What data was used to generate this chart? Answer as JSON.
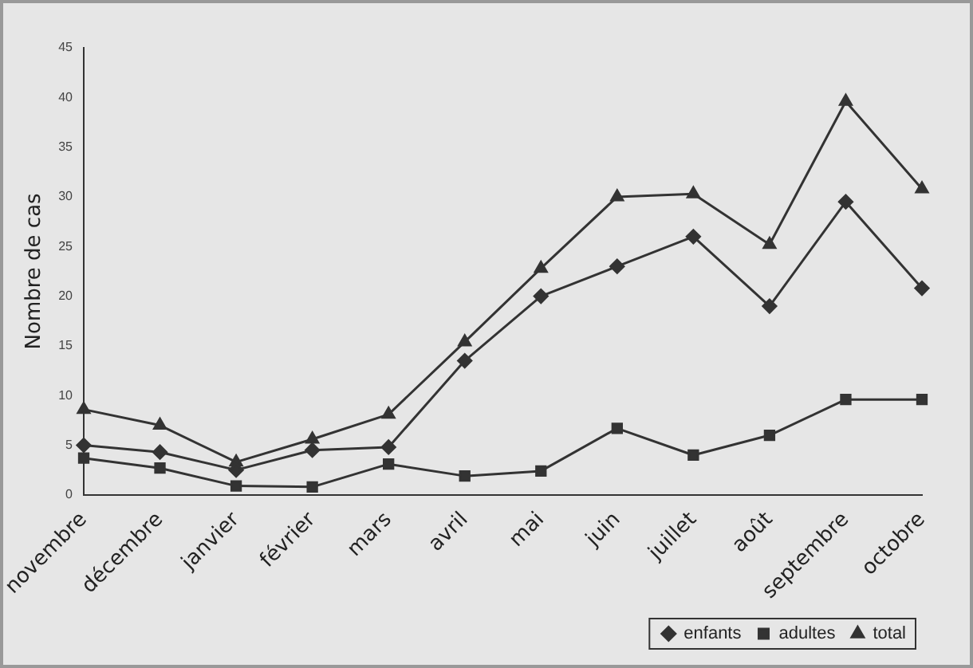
{
  "chart_data": {
    "type": "line",
    "ylabel": "Nombre de cas",
    "categories": [
      "novembre",
      "décembre",
      "janvier",
      "février",
      "mars",
      "avril",
      "mai",
      "juin",
      "juillet",
      "août",
      "septembre",
      "octobre"
    ],
    "series": [
      {
        "name": "enfants",
        "color": "#333333",
        "marker": "diamond",
        "values": [
          5,
          4.3,
          2.5,
          4.5,
          4.8,
          13.5,
          20,
          23,
          26,
          19,
          29.5,
          20.8
        ]
      },
      {
        "name": "adultes",
        "color": "#333333",
        "marker": "square",
        "values": [
          3.7,
          2.7,
          0.9,
          0.8,
          3.1,
          1.9,
          2.4,
          6.7,
          4,
          6,
          9.6,
          9.6
        ]
      },
      {
        "name": "total",
        "color": "#333333",
        "marker": "triangle",
        "values": [
          8.6,
          7,
          3.3,
          5.6,
          8.1,
          15.4,
          22.8,
          30,
          30.3,
          25.2,
          39.6,
          30.8
        ]
      }
    ],
    "ylim": [
      0,
      45
    ],
    "yticks": [
      0,
      5,
      10,
      15,
      20,
      25,
      30,
      35,
      40,
      45
    ],
    "grid": false,
    "legend": "bottom right",
    "line_style": "solid"
  }
}
